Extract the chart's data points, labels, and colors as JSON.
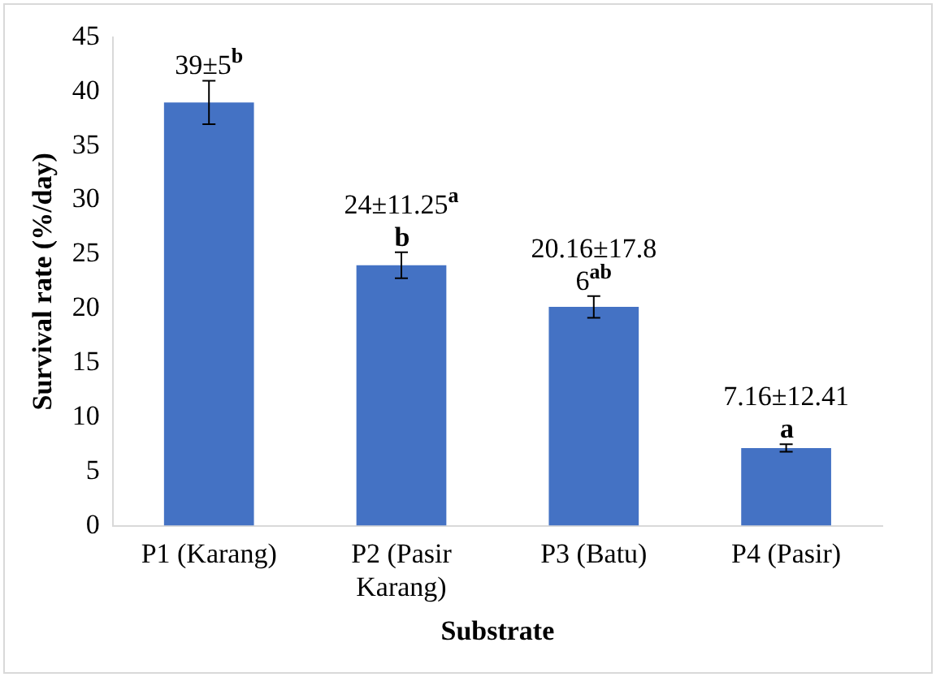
{
  "chart_data": {
    "type": "bar",
    "xlabel": "Substrate",
    "ylabel": "Survival rate (%/day)",
    "categories": [
      "P1 (Karang)",
      "P2 (Pasir\nKarang)",
      "P3 (Batu)",
      "P4 (Pasir)"
    ],
    "values": [
      39,
      24,
      20.16,
      7.16
    ],
    "color": "#4472c4",
    "errors": [
      2,
      1.2,
      1,
      0.35
    ],
    "value_labels": [
      "39±5$^{b}$",
      "24±11.25$^{a}$\nb",
      "20.16±17.8\n6$^{ab}$",
      "7.16±12.41\na"
    ],
    "ylim": [
      0,
      45
    ],
    "yticks": [
      0,
      5,
      10,
      15,
      20,
      25,
      30,
      35,
      40,
      45
    ],
    "grid": false,
    "legend": false
  }
}
